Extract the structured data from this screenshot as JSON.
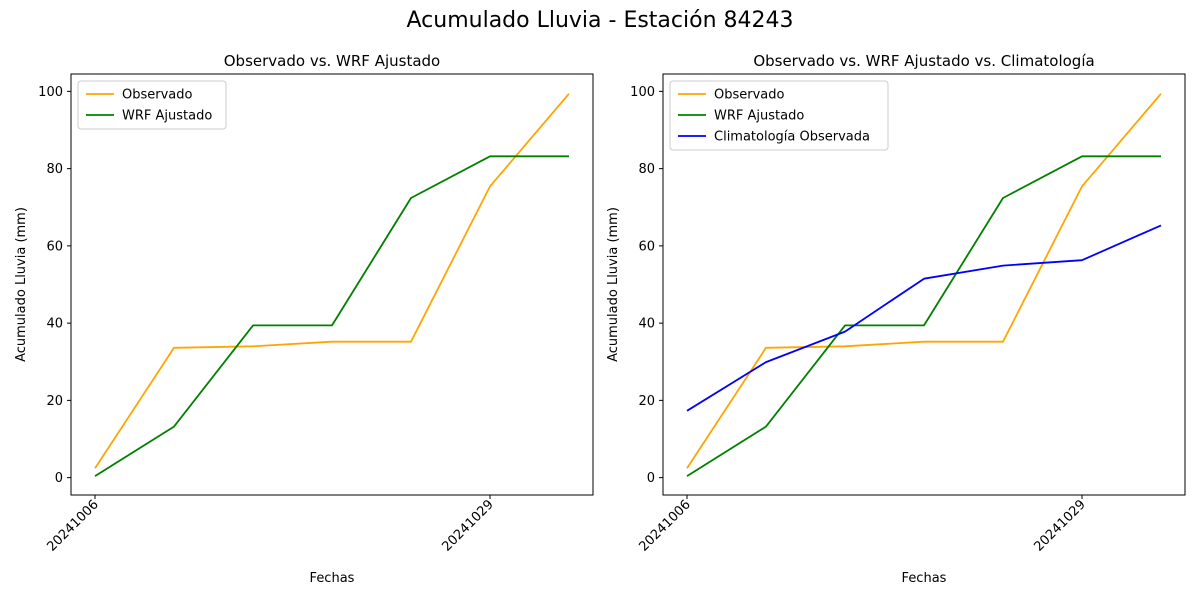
{
  "suptitle": "Acumulado Lluvia - Estación 84243",
  "chart_data": [
    {
      "type": "line",
      "title": "Observado vs. WRF Ajustado",
      "xlabel": "Fechas",
      "ylabel": "Acumulado Lluvia (mm)",
      "ylim": [
        -4.5,
        104.5
      ],
      "yticks": [
        0,
        20,
        40,
        60,
        80,
        100
      ],
      "x_points": 7,
      "xticks": [
        {
          "index": 0,
          "label": "20241006"
        },
        {
          "index": 5,
          "label": "20241029"
        }
      ],
      "legend": "upper-left",
      "series": [
        {
          "name": "Observado",
          "color": "#ffa500",
          "values": [
            2.4,
            33.6,
            34.0,
            35.2,
            35.2,
            75.4,
            99.4
          ]
        },
        {
          "name": "WRF Ajustado",
          "color": "#008000",
          "values": [
            0.4,
            13.2,
            39.4,
            39.4,
            72.4,
            83.2,
            83.2
          ]
        }
      ]
    },
    {
      "type": "line",
      "title": "Observado vs. WRF Ajustado vs. Climatología",
      "xlabel": "Fechas",
      "ylabel": "Acumulado Lluvia (mm)",
      "ylim": [
        -4.5,
        104.5
      ],
      "yticks": [
        0,
        20,
        40,
        60,
        80,
        100
      ],
      "x_points": 7,
      "xticks": [
        {
          "index": 0,
          "label": "20241006"
        },
        {
          "index": 5,
          "label": "20241029"
        }
      ],
      "legend": "upper-left",
      "series": [
        {
          "name": "Observado",
          "color": "#ffa500",
          "values": [
            2.4,
            33.6,
            34.0,
            35.2,
            35.2,
            75.4,
            99.4
          ]
        },
        {
          "name": "WRF Ajustado",
          "color": "#008000",
          "values": [
            0.4,
            13.2,
            39.4,
            39.4,
            72.4,
            83.2,
            83.2
          ]
        },
        {
          "name": "Climatología Observada",
          "color": "#0000ff",
          "values": [
            17.3,
            29.9,
            37.8,
            51.5,
            54.9,
            56.3,
            65.3
          ]
        }
      ]
    }
  ]
}
